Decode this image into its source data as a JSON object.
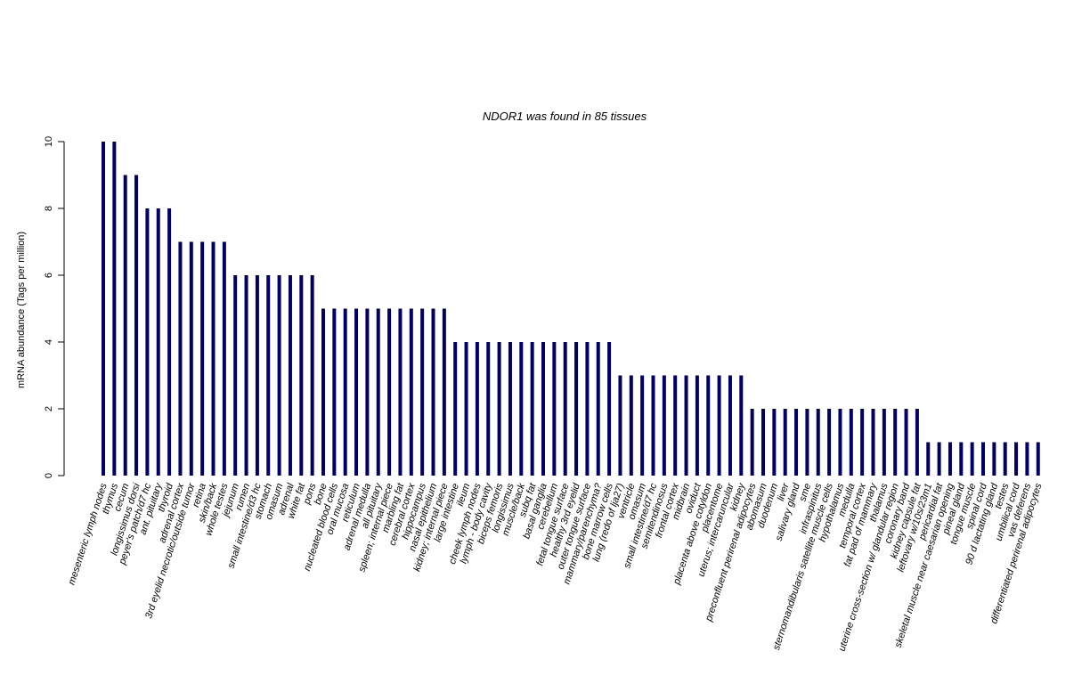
{
  "chart_data": {
    "type": "bar",
    "title": "NDOR1  was found in  85  tissues",
    "ylabel": "mRNA abundance (Tags per million)",
    "xlabel": "",
    "ylim": [
      0,
      10
    ],
    "yticks": [
      0,
      2,
      4,
      6,
      8,
      10
    ],
    "bar_color": "#000066",
    "grid": false,
    "categories": [
      "mesenteric lymph nodes",
      "thymus",
      "cecum",
      "longissimus dorsi",
      "peyer's patch/d7 hc",
      "ant. pituitary",
      "thyroid",
      "adrenal cortex",
      "3rd eyelid necrotic/outside tumor",
      "retina",
      "skin/back",
      "whole testes",
      "jejunum",
      "rumen",
      "small intestine/d3 hc",
      "stomach",
      "omasum",
      "adrenal",
      "white fat",
      "pons",
      "bone",
      "nucleated blood cells",
      "oral mucosa",
      "reticulum",
      "adrenal medulla",
      "all pituitary",
      "spleen; internal piece",
      "marbling fat",
      "cerebral cortex",
      "hippocampus",
      "nasal epithelium",
      "kidney; internal piece",
      "large intestine",
      "ileum",
      "cheek lymph nodes",
      "lymph - body cavity",
      "biceps femoris",
      "longissimus",
      "muscle/back",
      "subq fat",
      "basal ganglia",
      "cerebellum",
      "fetal tongue surface",
      "healthy 3rd eyelid",
      "outer tongue surface",
      "mammary/parenchyma?",
      "bone marrow cells",
      "lung (redo of lja27)",
      "ventricle",
      "omasum",
      "small intestine/d7 hc",
      "semitendinosus",
      "frontal cortex",
      "midbrain",
      "oviduct",
      "placenta above cotyldon",
      "placentome",
      "uterus; intercaruncular",
      "kidney",
      "preconfluent perirenal adipocytes",
      "abomasum",
      "duodenum",
      "liver",
      "salivary gland",
      "sme",
      "infraspinitus",
      "sternomandibularis satellite muscle cells",
      "hypothalamus",
      "medulla",
      "temporal cortex",
      "fat pad of mammary",
      "thalamus",
      "uterine cross-section w/ glandular region",
      "coronary band",
      "kidney capsule fat",
      "leftovary w/10s/23m1",
      "pericardial fat",
      "skeletal muscle near caesarian opening",
      "pineal gland",
      "tongue muscle",
      "spinal cord",
      "90 d lactating gland",
      "testes",
      "umbilical cord",
      "vas deferens",
      "differentiated perirenal adipocytes"
    ],
    "values": [
      10,
      10,
      9,
      9,
      8,
      8,
      8,
      7,
      7,
      7,
      7,
      7,
      6,
      6,
      6,
      6,
      6,
      6,
      6,
      6,
      5,
      5,
      5,
      5,
      5,
      5,
      5,
      5,
      5,
      5,
      5,
      5,
      4,
      4,
      4,
      4,
      4,
      4,
      4,
      4,
      4,
      4,
      4,
      4,
      4,
      4,
      4,
      3,
      3,
      3,
      3,
      3,
      3,
      3,
      3,
      3,
      3,
      3,
      3,
      2,
      2,
      2,
      2,
      2,
      2,
      2,
      2,
      2,
      2,
      2,
      2,
      2,
      2,
      2,
      2,
      1,
      1,
      1,
      1,
      1,
      1,
      1,
      1,
      1,
      1,
      1
    ]
  }
}
